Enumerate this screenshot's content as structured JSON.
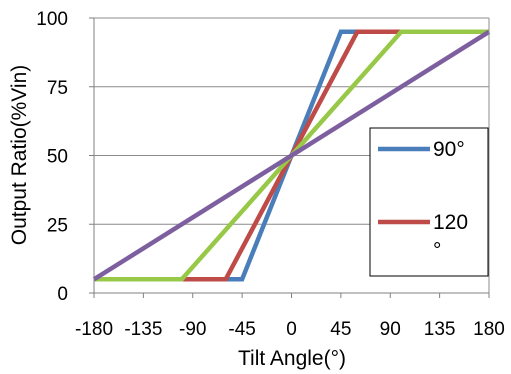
{
  "chart_data": {
    "type": "line",
    "title": "",
    "xlabel": "Tilt Angle(°)",
    "ylabel": "Output Ratio(%Vin)",
    "xlim": [
      -180,
      180
    ],
    "ylim": [
      0,
      100
    ],
    "x_ticks": [
      -180,
      -135,
      -90,
      -45,
      0,
      45,
      90,
      135,
      180
    ],
    "x_tick_labels": [
      "-180",
      "-135",
      "-90",
      "-45",
      "0",
      "45",
      "90",
      "135",
      "180"
    ],
    "y_ticks": [
      0,
      25,
      50,
      75,
      100
    ],
    "y_tick_labels": [
      "0",
      "25",
      "50",
      "75",
      "100"
    ],
    "grid": "horizontal",
    "legend_position": "right",
    "series": [
      {
        "name": "90°",
        "color": "#4a7ebb",
        "x": [
          -180,
          -45,
          45,
          180
        ],
        "y": [
          5,
          5,
          95,
          95
        ]
      },
      {
        "name": "120°",
        "color": "#be4b48",
        "x": [
          -180,
          -60,
          60,
          180
        ],
        "y": [
          5,
          5,
          95,
          95
        ]
      },
      {
        "name": "",
        "color": "#98c848",
        "x": [
          -180,
          -100,
          100,
          180
        ],
        "y": [
          5,
          5,
          95,
          95
        ]
      },
      {
        "name": "",
        "color": "#7d5fa0",
        "x": [
          -180,
          180
        ],
        "y": [
          5,
          95
        ]
      }
    ],
    "legend_entries": [
      {
        "label_lines": [
          "90°"
        ],
        "color": "#4a7ebb"
      },
      {
        "label_lines": [
          "120",
          "°"
        ],
        "color": "#be4b48"
      }
    ]
  }
}
